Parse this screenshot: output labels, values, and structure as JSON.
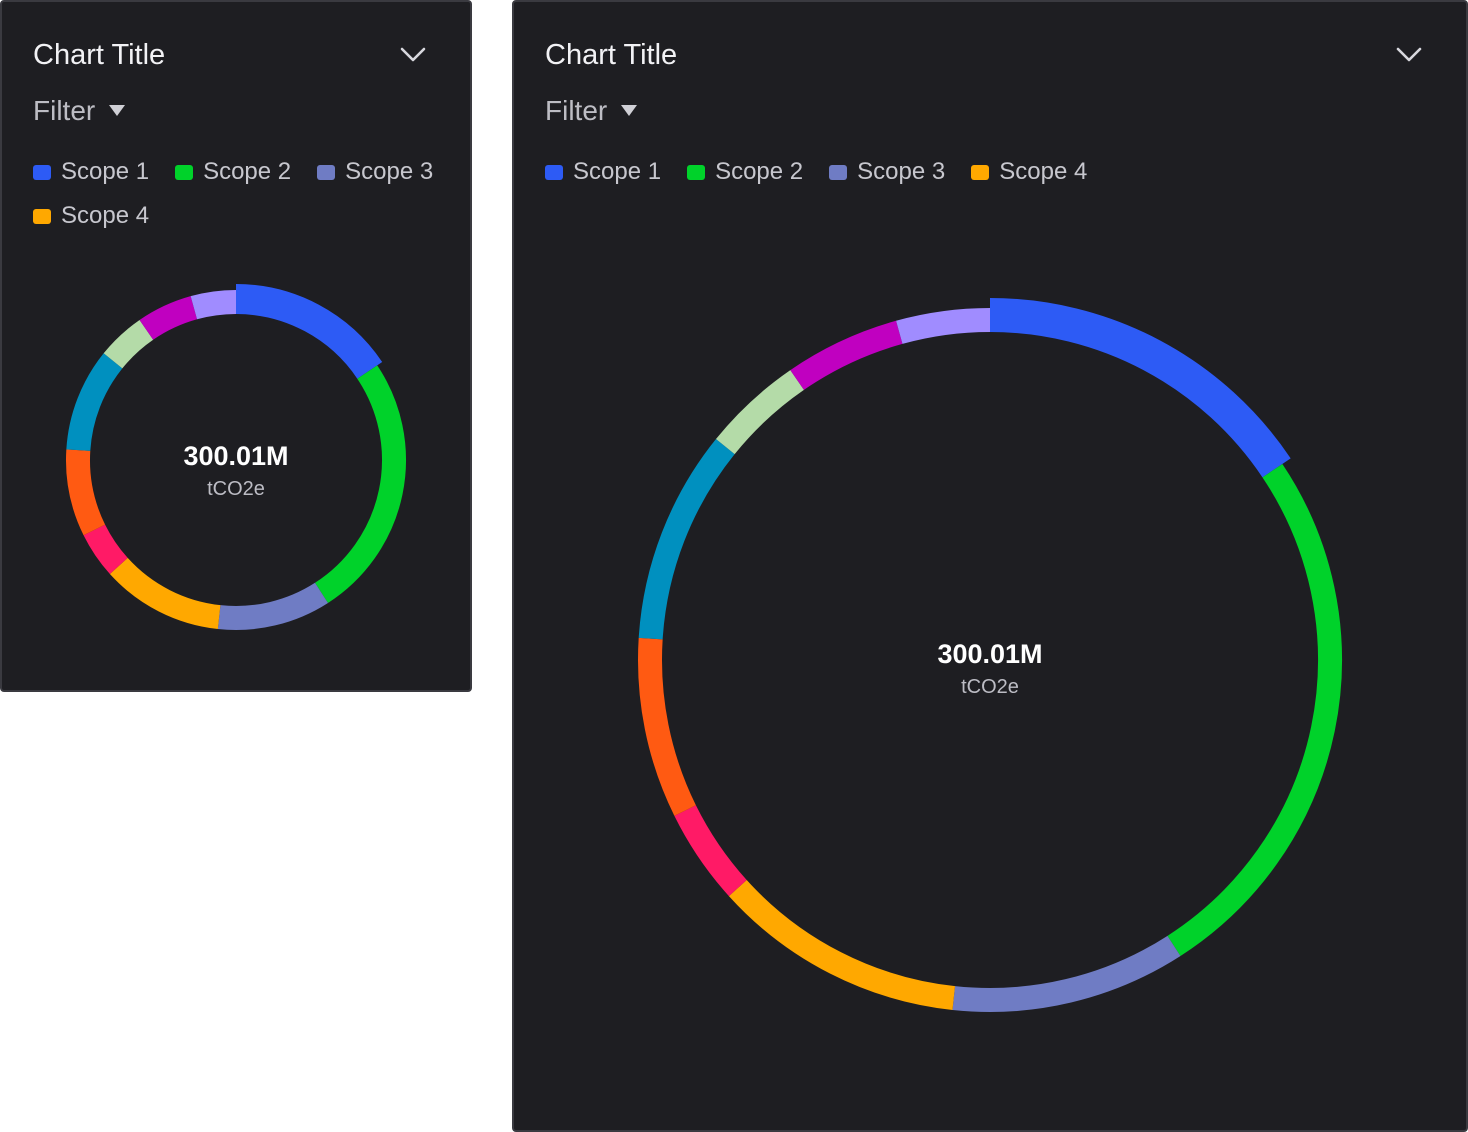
{
  "cards": [
    {
      "title": "Chart Title",
      "filter_label": "Filter",
      "legend": [
        {
          "label": "Scope 1",
          "color": "#2d5bf5"
        },
        {
          "label": "Scope 2",
          "color": "#00d22a"
        },
        {
          "label": "Scope 3",
          "color": "#6f7cc4"
        },
        {
          "label": "Scope 4",
          "color": "#ffa800"
        }
      ],
      "center_value": "300.01M",
      "center_unit": "tCO2e"
    },
    {
      "title": "Chart Title",
      "filter_label": "Filter",
      "legend": [
        {
          "label": "Scope 1",
          "color": "#2d5bf5"
        },
        {
          "label": "Scope 2",
          "color": "#00d22a"
        },
        {
          "label": "Scope 3",
          "color": "#6f7cc4"
        },
        {
          "label": "Scope 4",
          "color": "#ffa800"
        }
      ],
      "center_value": "300.01M",
      "center_unit": "tCO2e"
    }
  ],
  "chart_data": [
    {
      "type": "pie",
      "variant": "donut",
      "title": "Chart Title",
      "legend_placement": "top-left",
      "center_label": "300.01M",
      "center_unit": "tCO2e",
      "slices": [
        {
          "label": "Scope 1",
          "value": 15.6,
          "color": "#2d5bf5",
          "emphasized": true
        },
        {
          "label": "Scope 2",
          "value": 25.3,
          "color": "#00d22a"
        },
        {
          "label": "Scope 3",
          "value": 10.8,
          "color": "#6f7cc4"
        },
        {
          "label": "Scope 4",
          "value": 11.6,
          "color": "#ffa800"
        },
        {
          "value": 4.4,
          "color": "#ff1a66"
        },
        {
          "value": 8.3,
          "color": "#ff5a12"
        },
        {
          "value": 9.8,
          "color": "#0090bf"
        },
        {
          "value": 4.6,
          "color": "#b4dba8"
        },
        {
          "value": 5.3,
          "color": "#c000c0"
        },
        {
          "value": 4.3,
          "color": "#a08cff"
        }
      ]
    },
    {
      "type": "pie",
      "variant": "donut",
      "title": "Chart Title",
      "legend_placement": "top-left",
      "center_label": "300.01M",
      "center_unit": "tCO2e",
      "slices": [
        {
          "label": "Scope 1",
          "value": 15.6,
          "color": "#2d5bf5",
          "emphasized": true
        },
        {
          "label": "Scope 2",
          "value": 25.3,
          "color": "#00d22a"
        },
        {
          "label": "Scope 3",
          "value": 10.8,
          "color": "#6f7cc4"
        },
        {
          "label": "Scope 4",
          "value": 11.6,
          "color": "#ffa800"
        },
        {
          "value": 4.4,
          "color": "#ff1a66"
        },
        {
          "value": 8.3,
          "color": "#ff5a12"
        },
        {
          "value": 9.8,
          "color": "#0090bf"
        },
        {
          "value": 4.6,
          "color": "#b4dba8"
        },
        {
          "value": 5.3,
          "color": "#c000c0"
        },
        {
          "value": 4.3,
          "color": "#a08cff"
        }
      ]
    }
  ]
}
